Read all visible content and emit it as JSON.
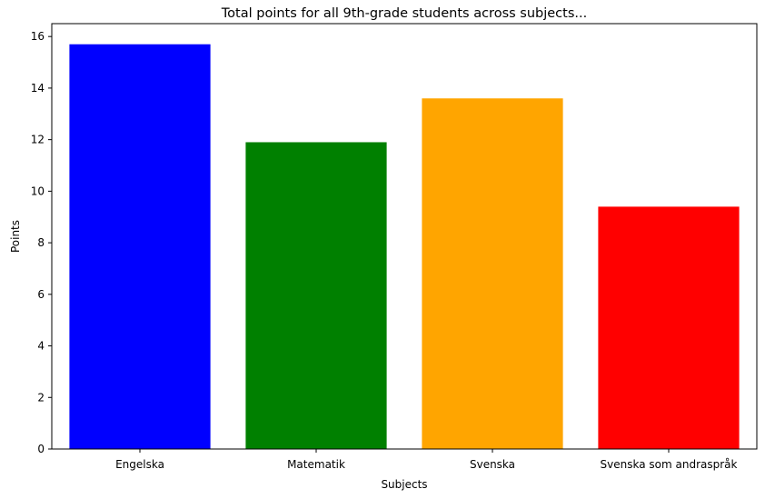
{
  "chart_data": {
    "type": "bar",
    "title": "Total points for all 9th-grade students across subjects...",
    "xlabel": "Subjects",
    "ylabel": "Points",
    "categories": [
      "Engelska",
      "Matematik",
      "Svenska",
      "Svenska som andraspråk"
    ],
    "values": [
      15.7,
      11.9,
      13.6,
      9.4
    ],
    "colors": [
      "#0000ff",
      "#008000",
      "#ffa500",
      "#ff0000"
    ],
    "ylim": [
      0,
      16.5
    ],
    "yticks": [
      0,
      2,
      4,
      6,
      8,
      10,
      12,
      14,
      16
    ],
    "grid": false,
    "legend": "none"
  }
}
